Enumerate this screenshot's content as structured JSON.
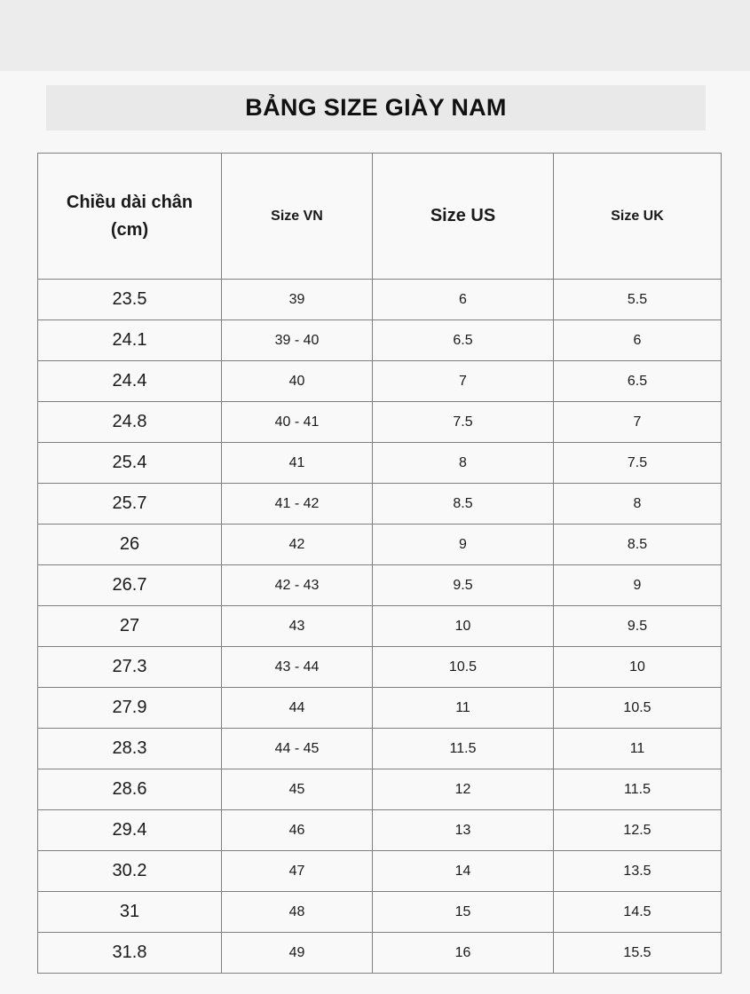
{
  "page": {
    "title": "BẢNG SIZE GIÀY NAM"
  },
  "colors": {
    "top_band": "#ececec",
    "page_background": "#f7f7f7",
    "title_box_background": "#e9e9e9",
    "cell_background": "#f9f9f9",
    "border": "#7f7f7f",
    "text": "#1a1a1a"
  },
  "table": {
    "headers": [
      "Chiều dài chân\n(cm)",
      "Size VN",
      "Size US",
      "Size UK"
    ],
    "rows": [
      [
        "23.5",
        "39",
        "6",
        "5.5"
      ],
      [
        "24.1",
        "39 - 40",
        "6.5",
        "6"
      ],
      [
        "24.4",
        "40",
        "7",
        "6.5"
      ],
      [
        "24.8",
        "40 - 41",
        "7.5",
        "7"
      ],
      [
        "25.4",
        "41",
        "8",
        "7.5"
      ],
      [
        "25.7",
        "41 - 42",
        "8.5",
        "8"
      ],
      [
        "26",
        "42",
        "9",
        "8.5"
      ],
      [
        "26.7",
        "42 - 43",
        "9.5",
        "9"
      ],
      [
        "27",
        "43",
        "10",
        "9.5"
      ],
      [
        "27.3",
        "43 - 44",
        "10.5",
        "10"
      ],
      [
        "27.9",
        "44",
        "11",
        "10.5"
      ],
      [
        "28.3",
        "44 - 45",
        "11.5",
        "11"
      ],
      [
        "28.6",
        "45",
        "12",
        "11.5"
      ],
      [
        "29.4",
        "46",
        "13",
        "12.5"
      ],
      [
        "30.2",
        "47",
        "14",
        "13.5"
      ],
      [
        "31",
        "48",
        "15",
        "14.5"
      ],
      [
        "31.8",
        "49",
        "16",
        "15.5"
      ]
    ]
  }
}
